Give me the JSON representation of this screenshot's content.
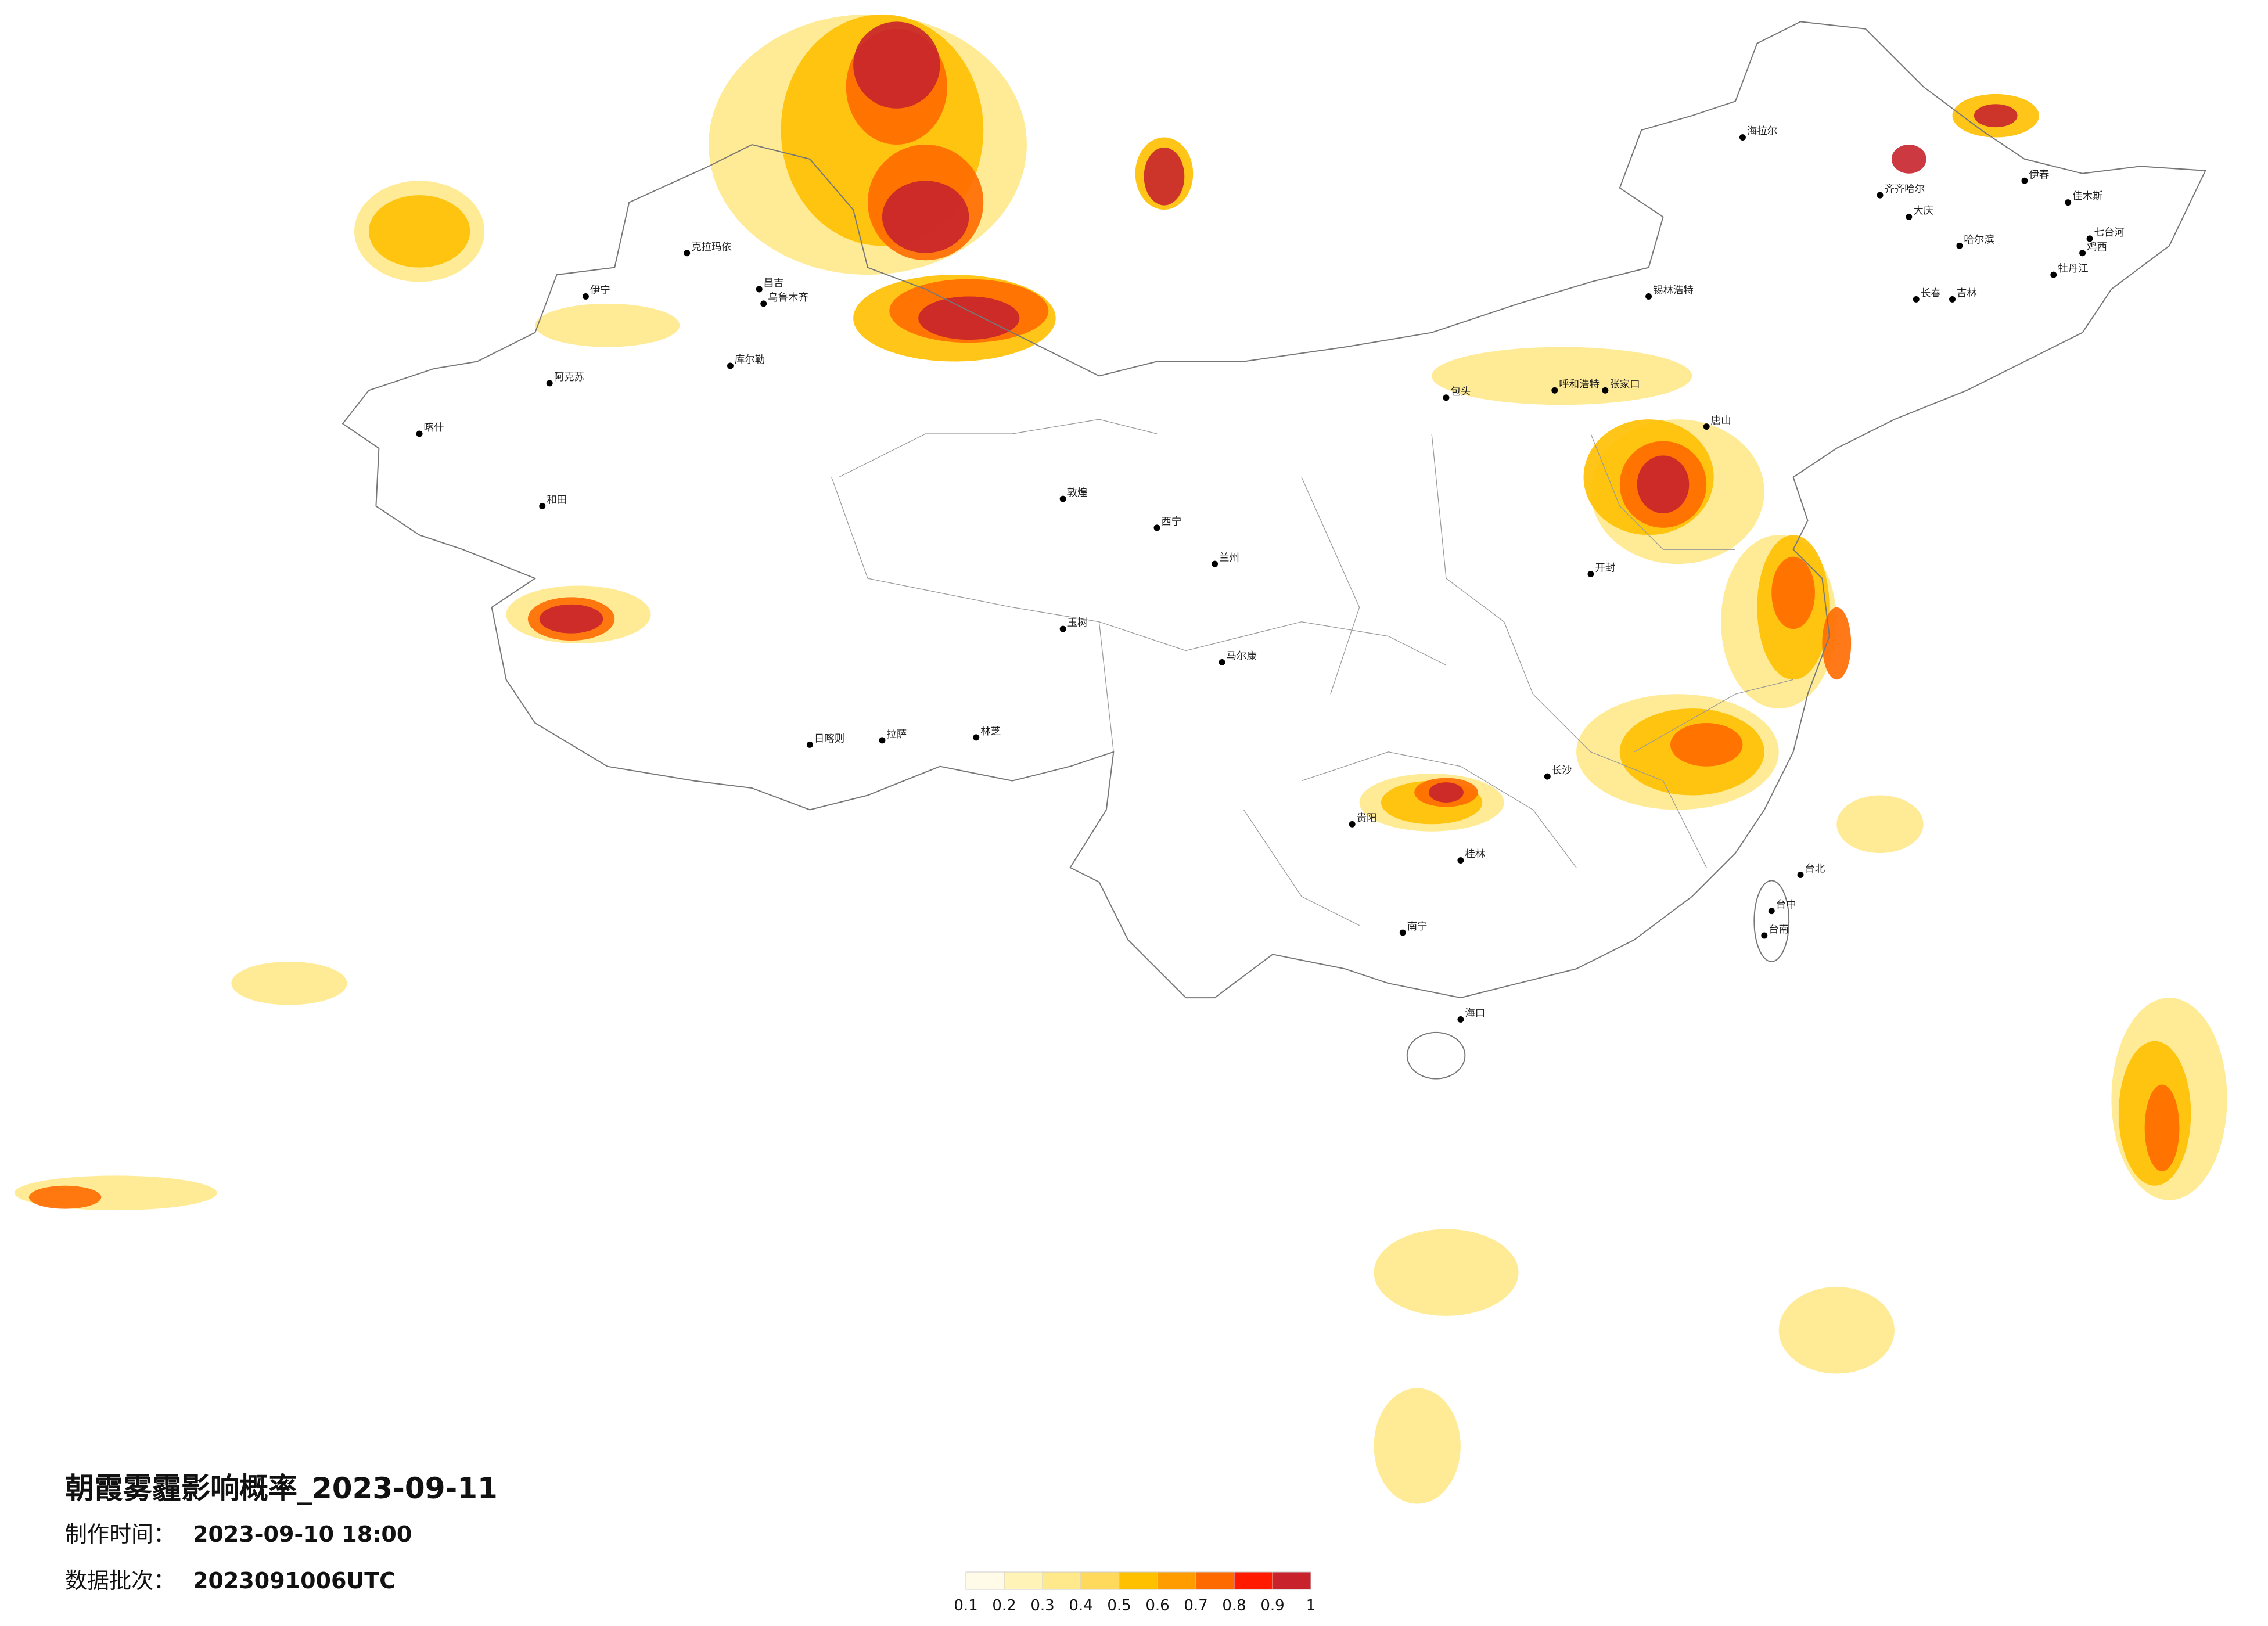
{
  "title": "朝霞雾霾影响概率_2023-09-11",
  "production_time": {
    "label": "制作时间：",
    "value": "2023-09-10 18:00"
  },
  "data_batch": {
    "label": "数据批次：",
    "value": "2023091006UTC"
  },
  "legend": {
    "ticks": [
      0.1,
      0.2,
      0.3,
      0.4,
      0.5,
      0.6,
      0.7,
      0.8,
      0.9,
      1
    ],
    "colors": [
      "#fffbe8",
      "#fff3b8",
      "#ffe98a",
      "#ffd95c",
      "#ffc000",
      "#ff9c00",
      "#ff6a00",
      "#ff1a00",
      "#c8232c"
    ]
  },
  "cities": [
    "乌鲁木齐",
    "克拉玛依",
    "和田",
    "拉萨",
    "日喀则",
    "西宁",
    "兰州",
    "哈尔滨",
    "长春",
    "海拉尔",
    "齐齐哈尔",
    "大庆",
    "伊春",
    "牡丹江",
    "吉林",
    "锡林浩特",
    "呼和浩特",
    "包头",
    "张家口",
    "唐山",
    "开封",
    "长沙",
    "贵阳",
    "桂林",
    "南宁",
    "海口",
    "台北",
    "台中",
    "台南",
    "敦煌",
    "阿克苏",
    "喀什",
    "伊宁",
    "昌吉",
    "库尔勒",
    "玉树",
    "马尔康",
    "林芝",
    "鸡西",
    "佳木斯",
    "七台河"
  ]
}
